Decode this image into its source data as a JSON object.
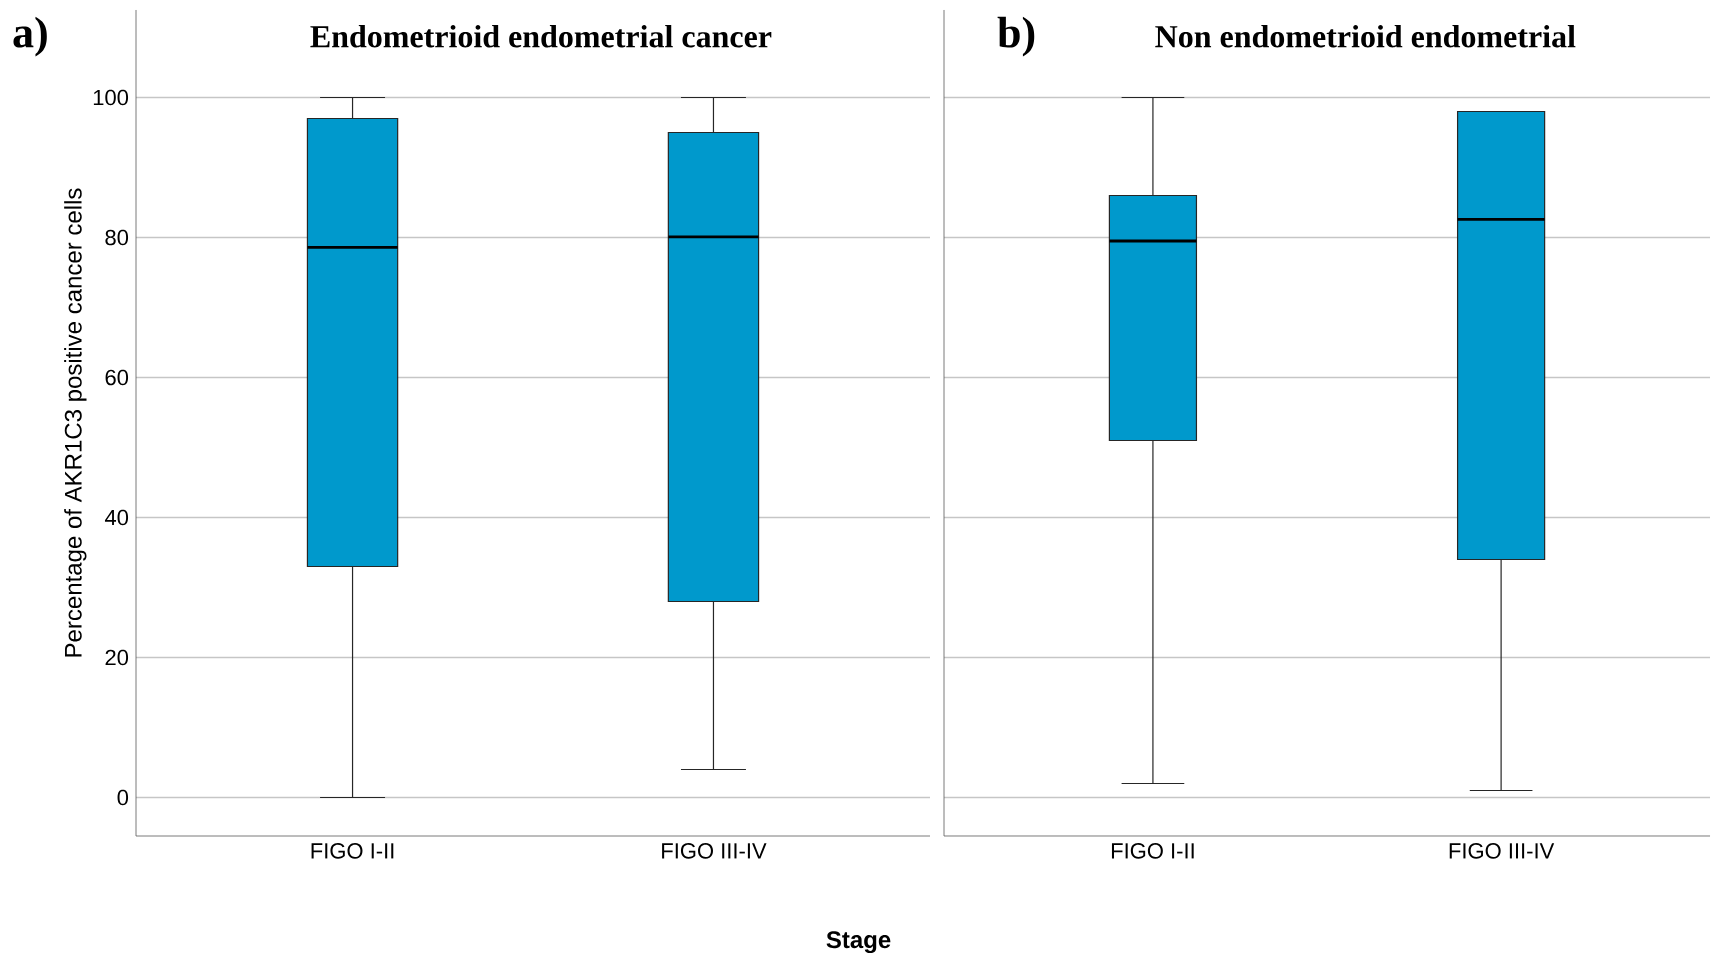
{
  "chart_data": [
    {
      "type": "box",
      "title": "Endometrioid endometrial cancer",
      "annotations": [
        "a)"
      ],
      "xlabel": "Stage",
      "ylabel": "Percentage of AKR1C3 positive cancer cells",
      "categories": [
        "FIGO I-II",
        "FIGO III-IV"
      ],
      "color": "#0099cc",
      "ylim": [
        -5.5,
        112.5
      ],
      "yticks": [
        0,
        20,
        40,
        60,
        80,
        100
      ],
      "grid": "y",
      "boxes": [
        {
          "low": 0,
          "q1": 33,
          "median": 78.6,
          "q3": 97,
          "high": 100
        },
        {
          "low": 4,
          "q1": 28,
          "median": 80.1,
          "q3": 95,
          "high": 100
        }
      ]
    },
    {
      "type": "box",
      "title": "Non endometrioid endometrial",
      "annotations": [
        "b)"
      ],
      "categories": [
        "FIGO I-II",
        "FIGO III-IV"
      ],
      "color": "#0099cc",
      "ylim": [
        -5.5,
        112.5
      ],
      "yticks": [
        0,
        20,
        40,
        60,
        80,
        100
      ],
      "grid": "y",
      "tick_labels": "x",
      "boxes": [
        {
          "low": 2,
          "q1": 51,
          "median": 79.5,
          "q3": 86,
          "high": 100
        },
        {
          "low": 1,
          "q1": 34,
          "median": 82.6,
          "q3": 98,
          "high": 98
        }
      ]
    }
  ]
}
